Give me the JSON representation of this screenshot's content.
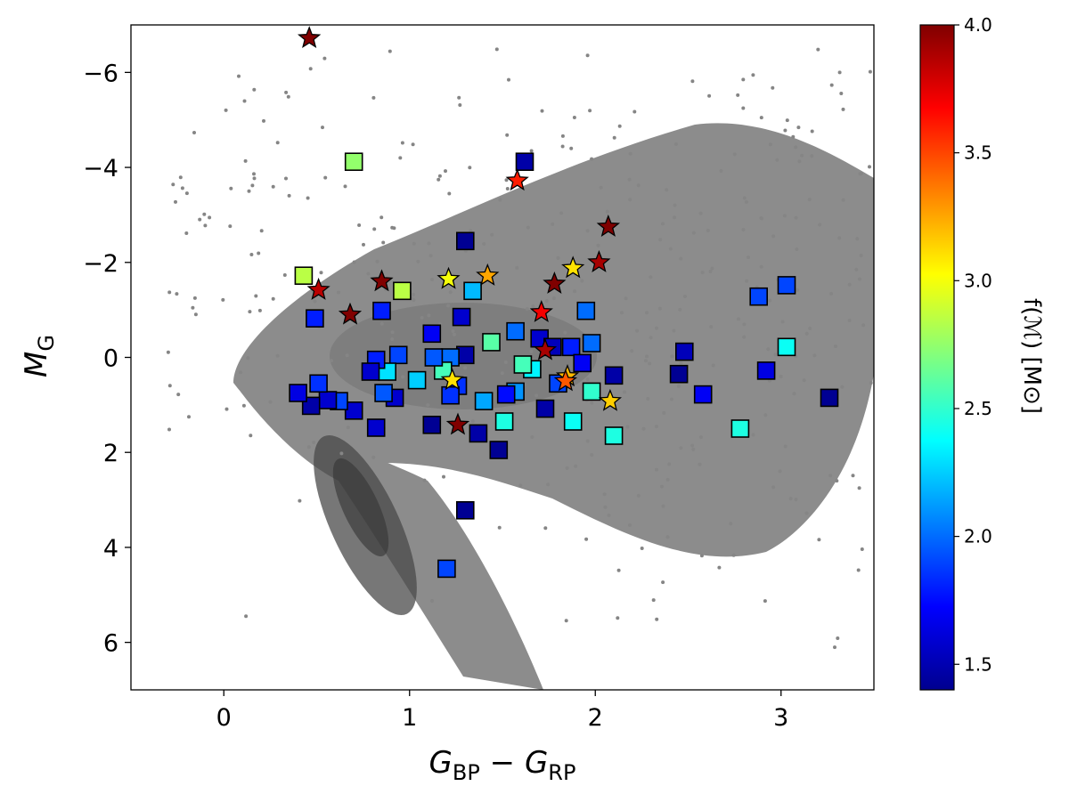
{
  "chart_data": {
    "type": "scatter",
    "title": "",
    "xlabel": "G_BP − G_RP",
    "ylabel": "M_G",
    "xlim": [
      -0.5,
      3.5
    ],
    "ylim": [
      -7,
      7
    ],
    "y_inverted": true,
    "grid": false,
    "x_ticks": [
      0,
      1,
      2,
      3
    ],
    "x_tick_labels": [
      "0",
      "1",
      "2",
      "3"
    ],
    "y_ticks": [
      -6,
      -4,
      -2,
      0,
      2,
      4,
      6
    ],
    "y_tick_labels": [
      "−6",
      "−4",
      "−2",
      "0",
      "2",
      "4",
      "6"
    ],
    "colorbar": {
      "label": "f(ℳ) [M⊙]",
      "range": [
        1.4,
        4.0
      ],
      "colormap": "jet",
      "ticks": [
        1.5,
        2.0,
        2.5,
        3.0,
        3.5,
        4.0
      ],
      "tick_labels": [
        "1.5",
        "2.0",
        "2.5",
        "3.0",
        "3.5",
        "4.0"
      ]
    },
    "background": {
      "description": "Gaia field-star density in grey",
      "color": "#8c8c8c"
    },
    "series": [
      {
        "marker": "square",
        "points": [
          {
            "x": 0.7,
            "y": -4.12,
            "c": 2.75
          },
          {
            "x": 1.62,
            "y": -4.12,
            "c": 1.5
          },
          {
            "x": 1.3,
            "y": -2.45,
            "c": 1.45
          },
          {
            "x": 0.43,
            "y": -1.72,
            "c": 2.85
          },
          {
            "x": 0.96,
            "y": -1.4,
            "c": 2.85
          },
          {
            "x": 1.34,
            "y": -1.4,
            "c": 2.2
          },
          {
            "x": 0.49,
            "y": -0.82,
            "c": 1.8
          },
          {
            "x": 0.85,
            "y": -0.98,
            "c": 1.8
          },
          {
            "x": 1.28,
            "y": -0.85,
            "c": 1.6
          },
          {
            "x": 1.12,
            "y": -0.5,
            "c": 1.7
          },
          {
            "x": 1.44,
            "y": -0.32,
            "c": 2.6
          },
          {
            "x": 1.57,
            "y": -0.55,
            "c": 2.0
          },
          {
            "x": 1.7,
            "y": -0.4,
            "c": 1.6
          },
          {
            "x": 1.77,
            "y": -0.22,
            "c": 1.55
          },
          {
            "x": 1.87,
            "y": -0.22,
            "c": 1.8
          },
          {
            "x": 1.95,
            "y": -0.98,
            "c": 2.0
          },
          {
            "x": 1.98,
            "y": -0.3,
            "c": 2.0
          },
          {
            "x": 1.93,
            "y": 0.12,
            "c": 1.7
          },
          {
            "x": 2.1,
            "y": 0.38,
            "c": 1.5
          },
          {
            "x": 2.45,
            "y": 0.35,
            "c": 1.45
          },
          {
            "x": 2.48,
            "y": -0.12,
            "c": 1.55
          },
          {
            "x": 2.88,
            "y": -1.28,
            "c": 1.9
          },
          {
            "x": 3.03,
            "y": -1.52,
            "c": 1.9
          },
          {
            "x": 2.92,
            "y": 0.28,
            "c": 1.65
          },
          {
            "x": 3.03,
            "y": -0.22,
            "c": 2.4
          },
          {
            "x": 3.26,
            "y": 0.85,
            "c": 1.45
          },
          {
            "x": 2.58,
            "y": 0.78,
            "c": 1.7
          },
          {
            "x": 2.78,
            "y": 1.5,
            "c": 2.45
          },
          {
            "x": 2.1,
            "y": 1.65,
            "c": 2.45
          },
          {
            "x": 1.98,
            "y": 0.72,
            "c": 2.5
          },
          {
            "x": 1.88,
            "y": 1.35,
            "c": 2.4
          },
          {
            "x": 1.8,
            "y": 0.55,
            "c": 1.9
          },
          {
            "x": 1.73,
            "y": 1.08,
            "c": 1.5
          },
          {
            "x": 1.66,
            "y": 0.25,
            "c": 2.35
          },
          {
            "x": 1.61,
            "y": 0.15,
            "c": 2.55
          },
          {
            "x": 1.57,
            "y": 0.72,
            "c": 2.1
          },
          {
            "x": 1.52,
            "y": 0.78,
            "c": 1.75
          },
          {
            "x": 1.51,
            "y": 1.35,
            "c": 2.45
          },
          {
            "x": 1.4,
            "y": 0.92,
            "c": 2.15
          },
          {
            "x": 1.37,
            "y": 1.6,
            "c": 1.5
          },
          {
            "x": 1.48,
            "y": 1.95,
            "c": 1.45
          },
          {
            "x": 1.3,
            "y": 3.22,
            "c": 1.45
          },
          {
            "x": 1.2,
            "y": 4.45,
            "c": 1.9
          },
          {
            "x": 1.3,
            "y": -0.05,
            "c": 1.5
          },
          {
            "x": 1.22,
            "y": 0.0,
            "c": 2.0
          },
          {
            "x": 1.26,
            "y": 0.6,
            "c": 1.85
          },
          {
            "x": 1.22,
            "y": 0.8,
            "c": 1.85
          },
          {
            "x": 1.18,
            "y": 0.28,
            "c": 2.55
          },
          {
            "x": 1.13,
            "y": 0.0,
            "c": 1.95
          },
          {
            "x": 1.12,
            "y": 1.42,
            "c": 1.45
          },
          {
            "x": 1.04,
            "y": 0.48,
            "c": 2.25
          },
          {
            "x": 0.94,
            "y": -0.05,
            "c": 1.9
          },
          {
            "x": 0.92,
            "y": 0.85,
            "c": 1.6
          },
          {
            "x": 0.88,
            "y": 0.3,
            "c": 2.3
          },
          {
            "x": 0.86,
            "y": 0.75,
            "c": 1.95
          },
          {
            "x": 0.82,
            "y": 0.05,
            "c": 1.8
          },
          {
            "x": 0.79,
            "y": 0.3,
            "c": 1.6
          },
          {
            "x": 0.82,
            "y": 1.48,
            "c": 1.6
          },
          {
            "x": 0.7,
            "y": 1.12,
            "c": 1.6
          },
          {
            "x": 0.62,
            "y": 0.92,
            "c": 1.9
          },
          {
            "x": 0.56,
            "y": 0.9,
            "c": 1.6
          },
          {
            "x": 0.51,
            "y": 0.55,
            "c": 1.85
          },
          {
            "x": 0.47,
            "y": 1.02,
            "c": 1.5
          },
          {
            "x": 0.4,
            "y": 0.75,
            "c": 1.65
          }
        ]
      },
      {
        "marker": "star",
        "points": [
          {
            "x": 0.46,
            "y": -6.72,
            "c": 4.0
          },
          {
            "x": 1.58,
            "y": -3.72,
            "c": 3.6
          },
          {
            "x": 2.07,
            "y": -2.75,
            "c": 4.0
          },
          {
            "x": 0.51,
            "y": -1.42,
            "c": 3.85
          },
          {
            "x": 0.68,
            "y": -0.9,
            "c": 4.0
          },
          {
            "x": 0.85,
            "y": -1.6,
            "c": 4.0
          },
          {
            "x": 1.21,
            "y": -1.65,
            "c": 3.0
          },
          {
            "x": 1.42,
            "y": -1.72,
            "c": 3.25
          },
          {
            "x": 1.78,
            "y": -1.55,
            "c": 4.0
          },
          {
            "x": 1.88,
            "y": -1.88,
            "c": 3.1
          },
          {
            "x": 2.02,
            "y": -2.0,
            "c": 3.9
          },
          {
            "x": 1.71,
            "y": -0.95,
            "c": 3.7
          },
          {
            "x": 1.73,
            "y": -0.15,
            "c": 3.9
          },
          {
            "x": 1.23,
            "y": 0.48,
            "c": 3.1
          },
          {
            "x": 1.26,
            "y": 1.42,
            "c": 4.0
          },
          {
            "x": 1.85,
            "y": 0.4,
            "c": 3.2
          },
          {
            "x": 1.84,
            "y": 0.5,
            "c": 3.45
          },
          {
            "x": 2.08,
            "y": 0.92,
            "c": 3.15
          }
        ]
      }
    ]
  }
}
